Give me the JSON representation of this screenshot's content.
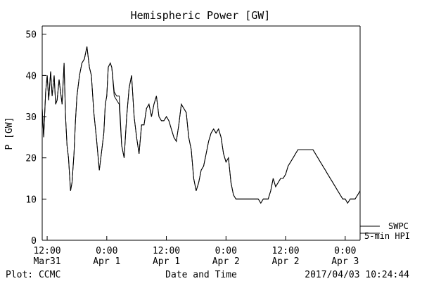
{
  "chart_data": {
    "type": "line",
    "title": "Hemispheric Power [GW]",
    "xlabel": "Date and Time",
    "ylabel": "P [GW]",
    "ylim": [
      0,
      52
    ],
    "xlim_hours": [
      -13,
      51
    ],
    "yticks": [
      0,
      10,
      20,
      30,
      40,
      50
    ],
    "xticks": [
      {
        "hour": -12,
        "time": "12:00",
        "date": "Mar31"
      },
      {
        "hour": 0,
        "time": "0:00",
        "date": "Apr 1"
      },
      {
        "hour": 12,
        "time": "12:00",
        "date": "Apr 1"
      },
      {
        "hour": 24,
        "time": "0:00",
        "date": "Apr 2"
      },
      {
        "hour": 36,
        "time": "12:00",
        "date": "Apr 2"
      },
      {
        "hour": 48,
        "time": "0:00",
        "date": "Apr 3"
      }
    ],
    "grid": false,
    "legend_placement": "right of plot, bottom",
    "series": [
      {
        "name": "SWPC",
        "x": [
          -13,
          -12.7,
          -12.3,
          -12,
          -11.7,
          -11.3,
          -11,
          -10.6,
          -10.3,
          -10,
          -9.6,
          -9.3,
          -9,
          -8.6,
          -8.3,
          -8,
          -7.7,
          -7.3,
          -7,
          -6.6,
          -6.3,
          -6,
          -5.5,
          -5,
          -4.5,
          -4,
          -3.5,
          -3.1,
          -2.6,
          -2.1,
          -1.5,
          -1,
          -0.6,
          -0.3,
          0,
          0.3,
          0.7,
          1,
          1.5,
          2,
          2.5,
          3,
          3.5,
          4,
          4.5,
          5,
          5.5,
          6,
          6.5,
          7,
          7.5,
          8,
          8.5,
          9,
          9.5,
          10,
          10.5,
          11,
          11.5,
          12,
          12.5,
          13,
          13.5,
          14,
          14.5,
          15,
          15.5,
          16,
          16.5,
          17,
          17.5,
          18,
          18.5,
          19,
          19.5,
          20,
          20.5,
          21,
          21.5,
          22,
          22.5,
          23,
          23.5,
          24,
          24.5,
          25,
          25.5,
          26,
          26.5,
          27,
          27.5,
          28,
          28.5,
          29,
          29.5,
          30,
          30.5,
          31,
          31.5,
          32,
          32.5,
          33,
          33.5,
          34,
          34.5,
          35,
          35.5,
          36,
          36.5,
          37,
          37.5,
          38,
          38.5,
          39,
          39.5,
          40,
          40.5,
          41,
          41.5,
          42,
          42.5,
          43,
          43.5,
          44,
          44.5,
          45,
          45.5,
          46,
          46.5,
          47,
          47.5,
          48,
          48.5,
          49,
          49.5,
          50,
          50.5,
          51
        ],
        "y": [
          32,
          25,
          36,
          40,
          34,
          41,
          35,
          40,
          33,
          34,
          39,
          36,
          33,
          43,
          30,
          23,
          20,
          12,
          14,
          21,
          29,
          35,
          40,
          43,
          44,
          47,
          42,
          40,
          31,
          25,
          17,
          22,
          26,
          33,
          35,
          42,
          43,
          42,
          36,
          35,
          35,
          23,
          20,
          30,
          37,
          40,
          30,
          25,
          21,
          28,
          28,
          32,
          33,
          30,
          33,
          35,
          30,
          29,
          29,
          30,
          29,
          27,
          25,
          24,
          28,
          33,
          32,
          31,
          25,
          22,
          15,
          12,
          14,
          17,
          18,
          21,
          24,
          26,
          27,
          26,
          27,
          25,
          21,
          19,
          20,
          14,
          11,
          10,
          10,
          10,
          10,
          10,
          10,
          10,
          10,
          10,
          10,
          9,
          10,
          10,
          10,
          12,
          15,
          13,
          14,
          15,
          15,
          16,
          18,
          19,
          20,
          21,
          22,
          22,
          22,
          22,
          22,
          22,
          22,
          21,
          20,
          19,
          18,
          17,
          16,
          15,
          14,
          13,
          12,
          11,
          10,
          10,
          9,
          10,
          10,
          10,
          11,
          12
        ]
      },
      {
        "name": "5-min HPI",
        "x": [
          -13,
          -12.7,
          -12.3,
          -12,
          -11.7,
          -11.3,
          -11,
          -10.6,
          -10.3,
          -10,
          -9.6,
          -9.3,
          -9,
          -8.6,
          -8.3,
          -8,
          -7.7,
          -7.3,
          -7,
          -6.6,
          -6.3,
          -6,
          -5.5,
          -5,
          -4.5,
          -4,
          -3.5,
          -3.1,
          -2.6,
          -2.1,
          -1.5,
          -1,
          -0.6,
          -0.3,
          0,
          0.3,
          0.7,
          1,
          1.5,
          2,
          2.5,
          3,
          3.5,
          4,
          4.5,
          5,
          5.5,
          6,
          6.5,
          7,
          7.5,
          8,
          8.5,
          9,
          9.5,
          10,
          10.5,
          11,
          11.5,
          12,
          12.5,
          13,
          13.5,
          14,
          14.5,
          15,
          15.5,
          16,
          16.5,
          17,
          17.5,
          18,
          18.5,
          19,
          19.5,
          20,
          20.5,
          21,
          21.5,
          22,
          22.5,
          23,
          23.5,
          24,
          24.5,
          25,
          25.5,
          26,
          26.5,
          27,
          27.5,
          28,
          28.5,
          29,
          29.5,
          30,
          30.5,
          31,
          31.5,
          32,
          32.5,
          33,
          33.5,
          34,
          34.5,
          35,
          35.5,
          36,
          36.5,
          37,
          37.5,
          38,
          38.5,
          39,
          39.5,
          40,
          40.5,
          41,
          41.5,
          42,
          42.5,
          43,
          43.5,
          44,
          44.5,
          45,
          45.5,
          46,
          46.5,
          47,
          47.5,
          48,
          48.5,
          49,
          49.5,
          50,
          50.5,
          51
        ],
        "y": [
          32,
          25,
          36,
          40,
          34,
          41,
          35,
          40,
          33,
          34,
          39,
          36,
          33,
          43,
          30,
          23,
          20,
          12,
          14,
          21,
          29,
          35,
          40,
          43,
          44,
          47,
          42,
          40,
          31,
          25,
          17,
          22,
          26,
          33,
          35,
          42,
          43,
          42,
          35,
          34,
          33,
          23,
          20,
          30,
          37,
          40,
          30,
          25,
          21,
          28,
          28,
          32,
          33,
          30,
          33,
          35,
          30,
          29,
          29,
          30,
          29,
          27,
          25,
          24,
          28,
          33,
          32,
          31,
          25,
          22,
          15,
          12,
          14,
          17,
          18,
          21,
          24,
          26,
          27,
          26,
          27,
          25,
          21,
          19,
          20,
          14,
          11,
          10,
          10,
          10,
          10,
          10,
          10,
          10,
          10,
          10,
          10,
          9,
          10,
          10,
          10,
          12,
          15,
          13,
          14,
          15,
          15,
          16,
          18,
          19,
          20,
          21,
          22,
          22,
          22,
          22,
          22,
          22,
          22,
          21,
          20,
          19,
          18,
          17,
          16,
          15,
          14,
          13,
          12,
          11,
          10,
          10,
          9,
          10,
          10,
          10,
          11,
          12
        ]
      }
    ]
  },
  "footer": {
    "plot_credit": "Plot: CCMC",
    "timestamp": "2017/04/03 10:24:44"
  }
}
